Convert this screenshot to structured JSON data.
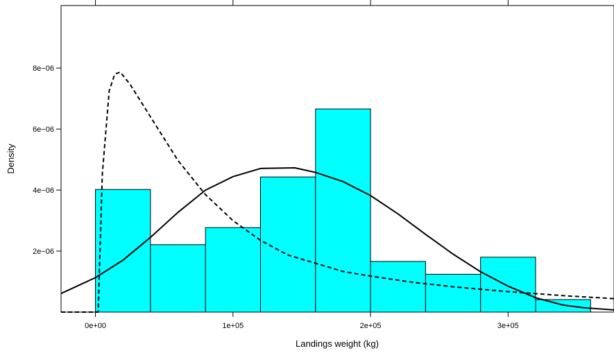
{
  "chart_data": {
    "type": "bar",
    "title": "",
    "xlabel": "Landings weight (kg)",
    "ylabel": "Density",
    "xlim": [
      -25000,
      377000
    ],
    "ylim": [
      0,
      1.005e-05
    ],
    "x_ticks": [
      {
        "value": 0,
        "label": "0e+00"
      },
      {
        "value": 100000,
        "label": "1e+05"
      },
      {
        "value": 200000,
        "label": "2e+05"
      },
      {
        "value": 300000,
        "label": "3e+05"
      }
    ],
    "y_ticks": [
      {
        "value": 2e-06,
        "label": "2e−06"
      },
      {
        "value": 4e-06,
        "label": "4e−06"
      },
      {
        "value": 6e-06,
        "label": "6e−06"
      },
      {
        "value": 8e-06,
        "label": "8e−06"
      }
    ],
    "bins": [
      {
        "x0": 0,
        "x1": 40000,
        "density": 4.02e-06
      },
      {
        "x0": 40000,
        "x1": 80000,
        "density": 2.21e-06
      },
      {
        "x0": 80000,
        "x1": 120000,
        "density": 2.77e-06
      },
      {
        "x0": 120000,
        "x1": 160000,
        "density": 4.43e-06
      },
      {
        "x0": 160000,
        "x1": 200000,
        "density": 6.66e-06
      },
      {
        "x0": 200000,
        "x1": 240000,
        "density": 1.66e-06
      },
      {
        "x0": 240000,
        "x1": 280000,
        "density": 1.24e-06
      },
      {
        "x0": 280000,
        "x1": 320000,
        "density": 1.8e-06
      },
      {
        "x0": 320000,
        "x1": 360000,
        "density": 4.1e-07
      }
    ],
    "fill_color": "#00ffff",
    "curves": [
      {
        "style": "solid",
        "points": [
          [
            -25000,
            6.1e-07
          ],
          [
            0,
            1.13e-06
          ],
          [
            20000,
            1.7e-06
          ],
          [
            40000,
            2.45e-06
          ],
          [
            60000,
            3.27e-06
          ],
          [
            80000,
            4e-06
          ],
          [
            100000,
            4.44e-06
          ],
          [
            120000,
            4.71e-06
          ],
          [
            145000,
            4.73e-06
          ],
          [
            160000,
            4.58e-06
          ],
          [
            180000,
            4.28e-06
          ],
          [
            200000,
            3.82e-06
          ],
          [
            220000,
            3.22e-06
          ],
          [
            240000,
            2.55e-06
          ],
          [
            260000,
            1.9e-06
          ],
          [
            280000,
            1.32e-06
          ],
          [
            300000,
            8.5e-07
          ],
          [
            320000,
            4.7e-07
          ],
          [
            340000,
            2.3e-07
          ],
          [
            355000,
            1.4e-07
          ],
          [
            377000,
            7e-08
          ]
        ]
      },
      {
        "style": "dashed",
        "points": [
          [
            -25000,
            0
          ],
          [
            2000,
            0
          ],
          [
            5000,
            4.53e-06
          ],
          [
            10000,
            7.25e-06
          ],
          [
            14000,
            7.8e-06
          ],
          [
            18000,
            7.87e-06
          ],
          [
            25000,
            7.48e-06
          ],
          [
            40000,
            6.4e-06
          ],
          [
            60000,
            4.97e-06
          ],
          [
            80000,
            3.85e-06
          ],
          [
            100000,
            3e-06
          ],
          [
            120000,
            2.35e-06
          ],
          [
            140000,
            1.87e-06
          ],
          [
            160000,
            1.6e-06
          ],
          [
            180000,
            1.33e-06
          ],
          [
            200000,
            1.18e-06
          ],
          [
            230000,
            9.8e-07
          ],
          [
            260000,
            8.3e-07
          ],
          [
            300000,
            6.7e-07
          ],
          [
            340000,
            5.4e-07
          ],
          [
            377000,
            4.4e-07
          ]
        ]
      }
    ]
  }
}
